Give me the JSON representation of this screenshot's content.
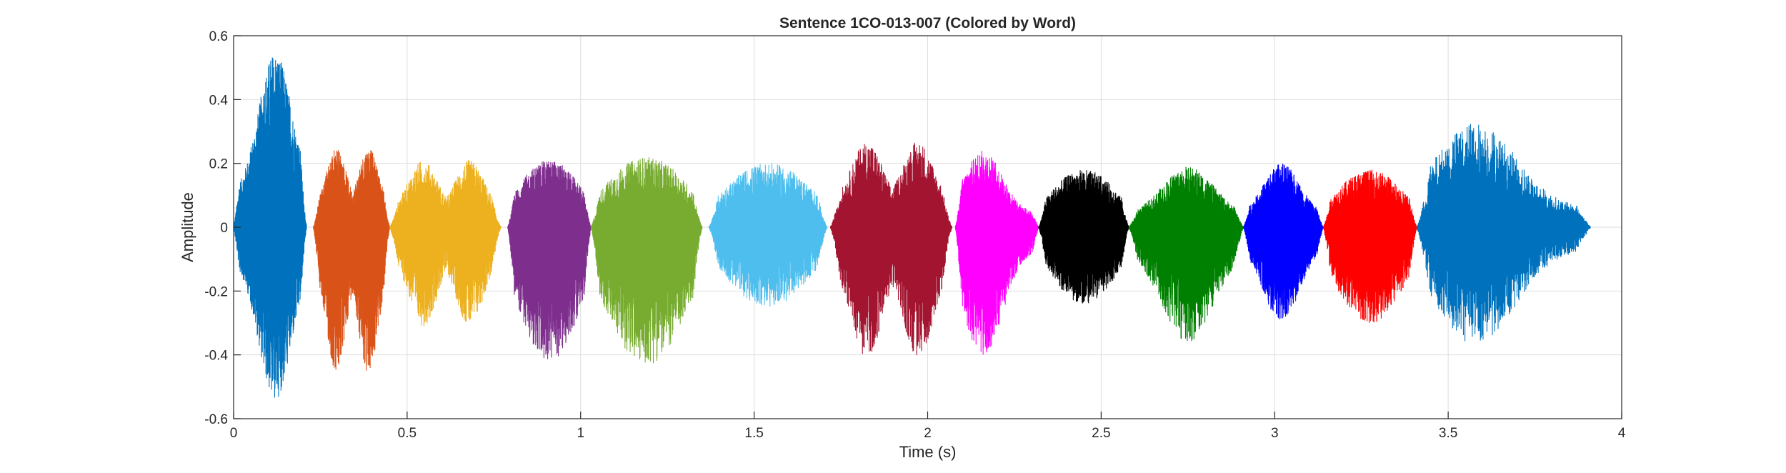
{
  "chart_data": {
    "type": "line",
    "title": "Sentence 1CO-013-007 (Colored by Word)",
    "xlabel": "Time (s)",
    "ylabel": "Amplitude",
    "xlim": [
      0,
      4
    ],
    "ylim": [
      -0.6,
      0.6
    ],
    "xticks": [
      0,
      0.5,
      1,
      1.5,
      2,
      2.5,
      3,
      3.5,
      4
    ],
    "xtick_labels": [
      "0",
      "0.5",
      "1",
      "1.5",
      "2",
      "2.5",
      "3",
      "3.5",
      "4"
    ],
    "yticks": [
      -0.6,
      -0.4,
      -0.2,
      0,
      0.2,
      0.4,
      0.6
    ],
    "ytick_labels": [
      "-0.6",
      "-0.4",
      "-0.2",
      "0",
      "0.2",
      "0.4",
      "0.6"
    ],
    "grid": true,
    "legend": "none",
    "series": [
      {
        "color": "#0072bd",
        "t_start": 0.0,
        "t_end": 0.21,
        "peak_time": 0.12,
        "pos_peak": 0.55,
        "neg_peak": -0.54,
        "env_shape": "peaked"
      },
      {
        "color": "#d95319",
        "t_start": 0.23,
        "t_end": 0.45,
        "peak_time": 0.34,
        "pos_peak": 0.25,
        "neg_peak": -0.46,
        "env_shape": "bimodal"
      },
      {
        "color": "#edb120",
        "t_start": 0.45,
        "t_end": 0.77,
        "peak_time": 0.72,
        "pos_peak": 0.21,
        "neg_peak": -0.31,
        "env_shape": "bimodal"
      },
      {
        "color": "#7e2f8e",
        "t_start": 0.79,
        "t_end": 1.03,
        "peak_time": 0.96,
        "pos_peak": 0.21,
        "neg_peak": -0.42,
        "env_shape": "flat"
      },
      {
        "color": "#77ac30",
        "t_start": 1.03,
        "t_end": 1.35,
        "peak_time": 1.18,
        "pos_peak": 0.22,
        "neg_peak": -0.43,
        "env_shape": "flat"
      },
      {
        "color": "#4dbeee",
        "t_start": 1.37,
        "t_end": 1.71,
        "peak_time": 1.52,
        "pos_peak": 0.2,
        "neg_peak": -0.25,
        "env_shape": "flat"
      },
      {
        "color": "#a2142f",
        "t_start": 1.72,
        "t_end": 2.07,
        "peak_time": 1.87,
        "pos_peak": 0.27,
        "neg_peak": -0.41,
        "env_shape": "bimodal"
      },
      {
        "color": "#ff00ff",
        "t_start": 2.08,
        "t_end": 2.32,
        "peak_time": 2.16,
        "pos_peak": 0.24,
        "neg_peak": -0.41,
        "env_shape": "peaked"
      },
      {
        "color": "#000000",
        "t_start": 2.32,
        "t_end": 2.58,
        "peak_time": 2.43,
        "pos_peak": 0.18,
        "neg_peak": -0.24,
        "env_shape": "flat"
      },
      {
        "color": "#008000",
        "t_start": 2.58,
        "t_end": 2.91,
        "peak_time": 2.75,
        "pos_peak": 0.19,
        "neg_peak": -0.36,
        "env_shape": "peaked"
      },
      {
        "color": "#0000ff",
        "t_start": 2.91,
        "t_end": 3.14,
        "peak_time": 3.02,
        "pos_peak": 0.2,
        "neg_peak": -0.3,
        "env_shape": "peaked"
      },
      {
        "color": "#ff0000",
        "t_start": 3.14,
        "t_end": 3.41,
        "peak_time": 3.27,
        "pos_peak": 0.18,
        "neg_peak": -0.3,
        "env_shape": "flat"
      },
      {
        "color": "#0072bd",
        "t_start": 3.41,
        "t_end": 3.91,
        "peak_time": 3.58,
        "pos_peak": 0.33,
        "neg_peak": -0.37,
        "env_shape": "peaked"
      }
    ]
  }
}
